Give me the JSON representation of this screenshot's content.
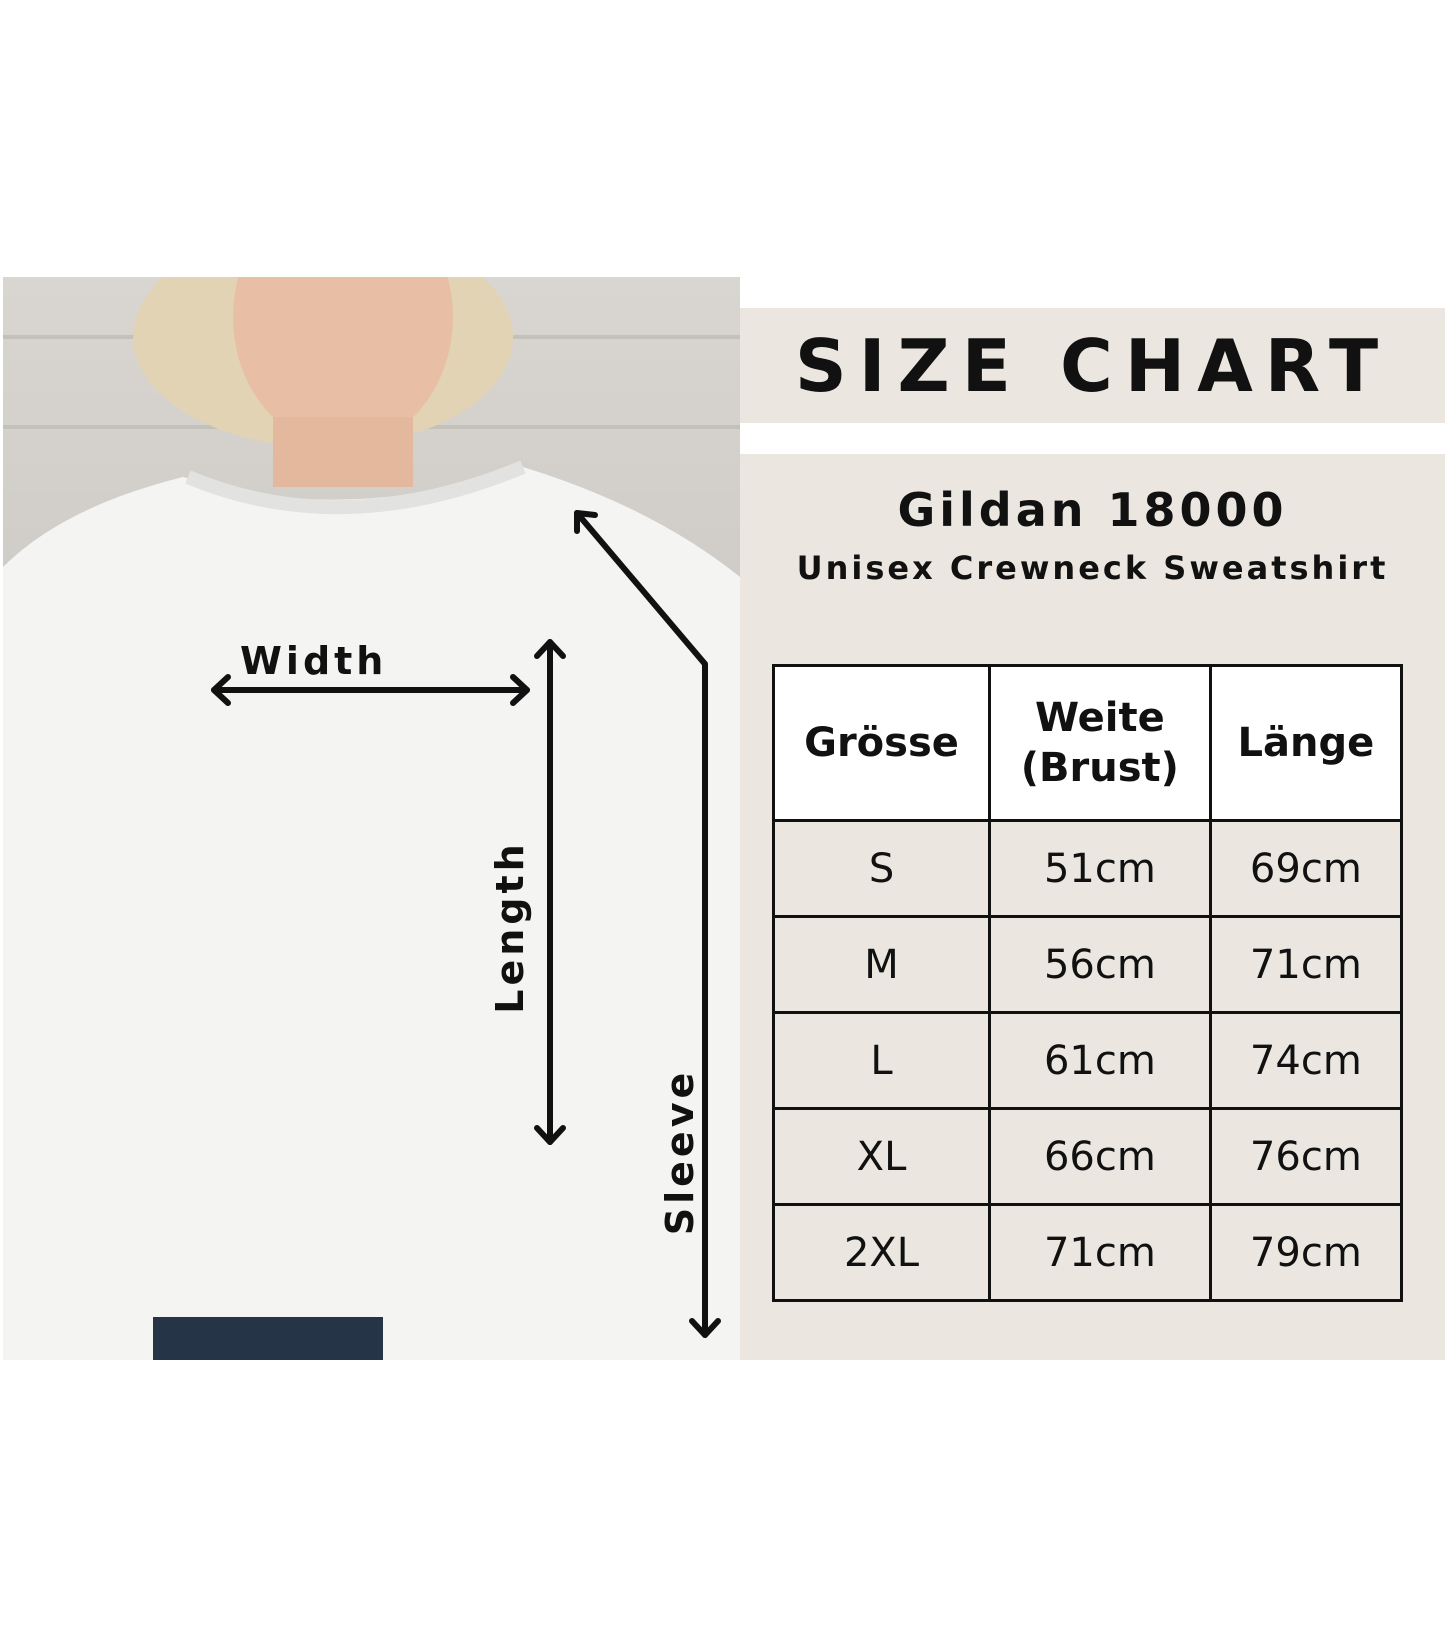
{
  "photo": {
    "labels": {
      "width": "Width",
      "length": "Length",
      "sleeve": "Sleeve"
    }
  },
  "title": "SIZE CHART",
  "product": {
    "brand": "Gildan 18000",
    "description": "Unisex Crewneck Sweatshirt"
  },
  "table": {
    "headers": [
      "Grösse",
      "Weite (Brust)",
      "Länge"
    ],
    "header_weite_line1": "Weite",
    "header_weite_line2": "(Brust)",
    "rows": [
      [
        "S",
        "51cm",
        "69cm"
      ],
      [
        "M",
        "56cm",
        "71cm"
      ],
      [
        "L",
        "61cm",
        "74cm"
      ],
      [
        "XL",
        "66cm",
        "76cm"
      ],
      [
        "2XL",
        "71cm",
        "79cm"
      ]
    ]
  },
  "colors": {
    "panel": "#ebe7e0",
    "text": "#111111",
    "header_bg": "#ffffff"
  }
}
